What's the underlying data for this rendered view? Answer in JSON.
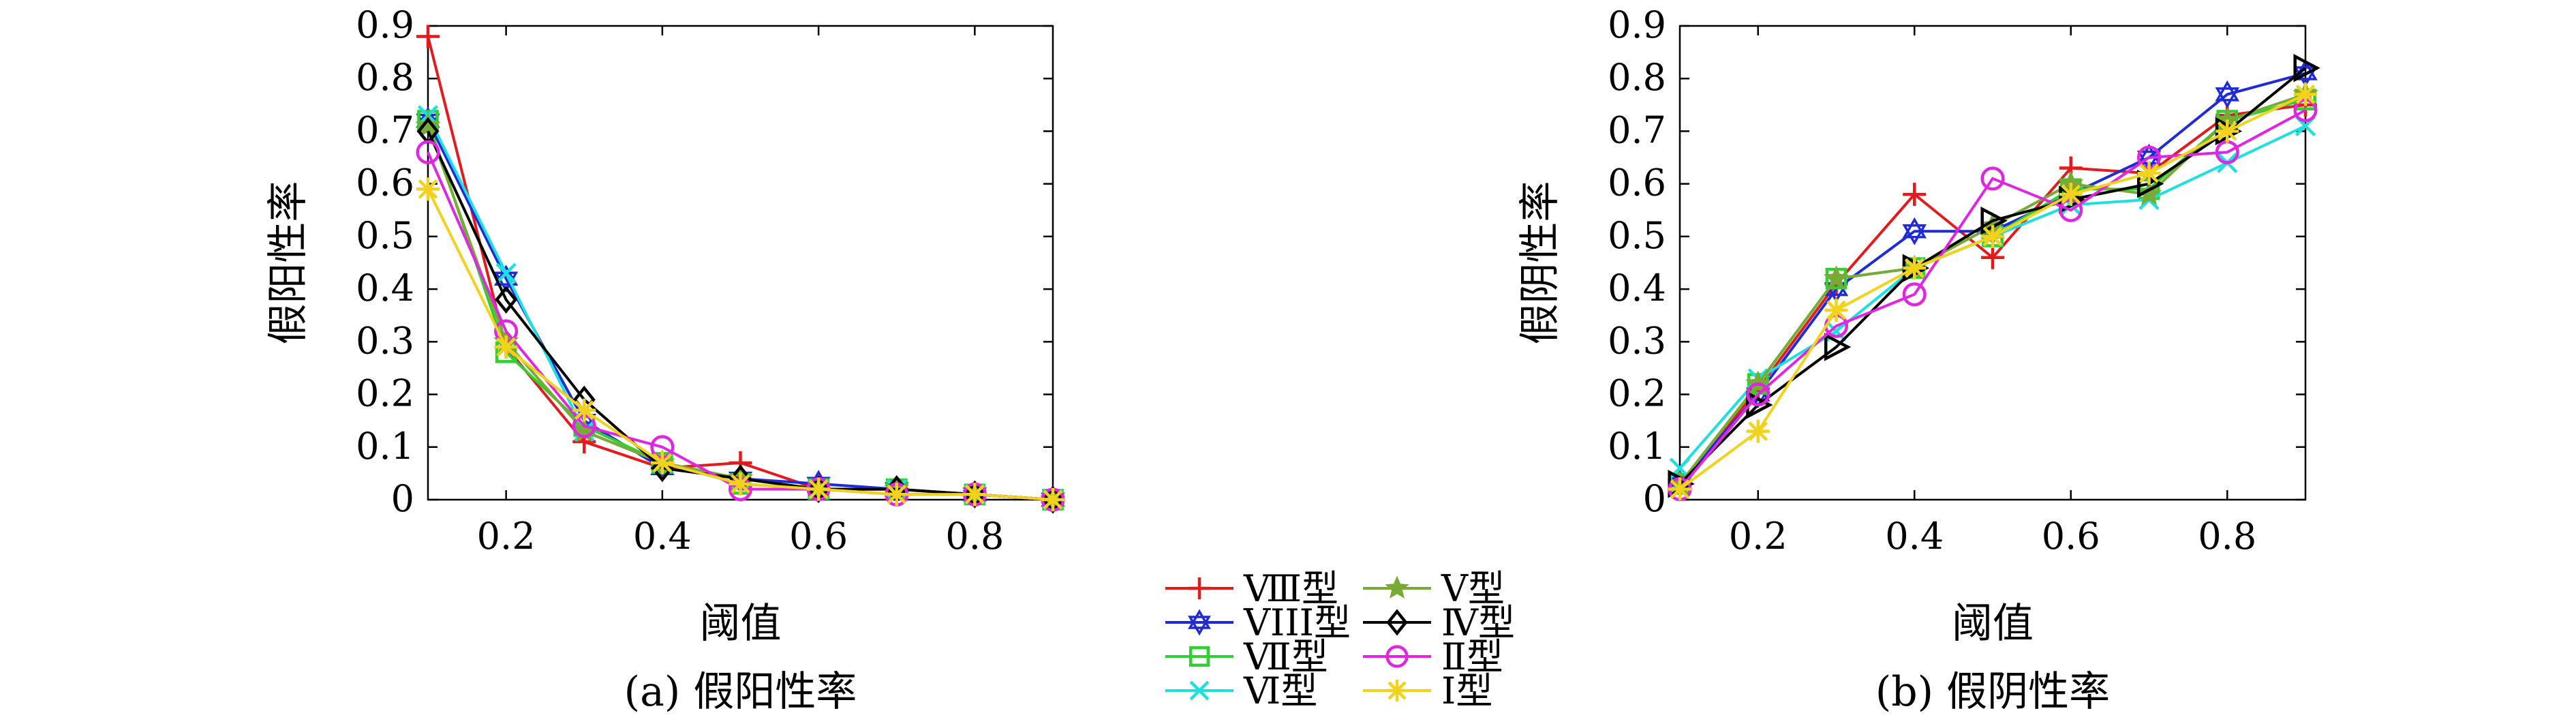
{
  "chart_data": [
    {
      "type": "line",
      "caption": "(a) 假阳性率",
      "xlabel": "阈值",
      "ylabel": "假阳性率",
      "xlim": [
        0.1,
        0.9
      ],
      "ylim": [
        0,
        0.9
      ],
      "xticks": [
        "0.2",
        "0.4",
        "0.6",
        "0.8"
      ],
      "xtick_values": [
        0.2,
        0.4,
        0.6,
        0.8
      ],
      "yticks": [
        "0",
        "0.1",
        "0.2",
        "0.3",
        "0.4",
        "0.5",
        "0.6",
        "0.7",
        "0.8",
        "0.9"
      ],
      "ytick_values": [
        0,
        0.1,
        0.2,
        0.3,
        0.4,
        0.5,
        0.6,
        0.7,
        0.8,
        0.9
      ],
      "x": [
        0.1,
        0.2,
        0.3,
        0.4,
        0.5,
        0.6,
        0.7,
        0.8,
        0.9
      ],
      "series": [
        {
          "name": "Ⅷ型",
          "values": [
            0.88,
            0.29,
            0.11,
            0.06,
            0.07,
            0.02,
            0.02,
            0.01,
            0.0
          ]
        },
        {
          "name": "VIII型",
          "values": [
            0.72,
            0.42,
            0.15,
            0.06,
            0.04,
            0.03,
            0.02,
            0.01,
            0.0
          ]
        },
        {
          "name": "Ⅶ型",
          "values": [
            0.72,
            0.28,
            0.14,
            0.07,
            0.03,
            0.02,
            0.02,
            0.01,
            0.0
          ]
        },
        {
          "name": "Ⅵ型",
          "values": [
            0.73,
            0.43,
            0.13,
            0.07,
            0.03,
            0.02,
            0.02,
            0.01,
            0.0
          ]
        },
        {
          "name": "Ⅴ型",
          "values": [
            0.71,
            0.3,
            0.13,
            0.07,
            0.04,
            0.02,
            0.02,
            0.01,
            0.0
          ]
        },
        {
          "name": "Ⅳ型",
          "values": [
            0.7,
            0.38,
            0.19,
            0.06,
            0.04,
            0.02,
            0.02,
            0.01,
            0.0
          ]
        },
        {
          "name": "Ⅱ型",
          "values": [
            0.66,
            0.32,
            0.14,
            0.1,
            0.02,
            0.02,
            0.01,
            0.01,
            0.0
          ]
        },
        {
          "name": "Ⅰ型",
          "values": [
            0.59,
            0.29,
            0.17,
            0.07,
            0.03,
            0.02,
            0.01,
            0.01,
            0.0
          ]
        }
      ]
    },
    {
      "type": "line",
      "caption": "(b) 假阴性率",
      "xlabel": "阈值",
      "ylabel": "假阴性率",
      "xlim": [
        0.1,
        0.9
      ],
      "ylim": [
        0,
        0.9
      ],
      "xticks": [
        "0.2",
        "0.4",
        "0.6",
        "0.8"
      ],
      "xtick_values": [
        0.2,
        0.4,
        0.6,
        0.8
      ],
      "yticks": [
        "0",
        "0.1",
        "0.2",
        "0.3",
        "0.4",
        "0.5",
        "0.6",
        "0.7",
        "0.8",
        "0.9"
      ],
      "ytick_values": [
        0,
        0.1,
        0.2,
        0.3,
        0.4,
        0.5,
        0.6,
        0.7,
        0.8,
        0.9
      ],
      "x": [
        0.1,
        0.2,
        0.3,
        0.4,
        0.5,
        0.6,
        0.7,
        0.8,
        0.9
      ],
      "series": [
        {
          "name": "Ⅷ型",
          "values": [
            0.03,
            0.21,
            0.41,
            0.58,
            0.46,
            0.63,
            0.62,
            0.73,
            0.75
          ]
        },
        {
          "name": "VIII型",
          "values": [
            0.03,
            0.2,
            0.4,
            0.51,
            0.51,
            0.58,
            0.65,
            0.77,
            0.81
          ]
        },
        {
          "name": "Ⅶ型",
          "values": [
            0.03,
            0.22,
            0.42,
            0.44,
            0.5,
            0.59,
            0.59,
            0.72,
            0.76
          ]
        },
        {
          "name": "Ⅵ型",
          "values": [
            0.06,
            0.23,
            0.32,
            0.44,
            0.5,
            0.56,
            0.57,
            0.64,
            0.71
          ]
        },
        {
          "name": "Ⅴ型",
          "values": [
            0.03,
            0.22,
            0.42,
            0.44,
            0.52,
            0.6,
            0.58,
            0.72,
            0.77
          ]
        },
        {
          "name": "Ⅳ型",
          "values": [
            0.03,
            0.18,
            0.29,
            0.44,
            0.53,
            0.57,
            0.6,
            0.7,
            0.82
          ]
        },
        {
          "name": "Ⅱ型",
          "values": [
            0.02,
            0.2,
            0.33,
            0.39,
            0.61,
            0.55,
            0.65,
            0.66,
            0.74
          ]
        },
        {
          "name": "Ⅰ型",
          "values": [
            0.02,
            0.13,
            0.36,
            0.44,
            0.5,
            0.58,
            0.62,
            0.7,
            0.77
          ]
        }
      ]
    }
  ],
  "legend": {
    "placement": "bottom-center",
    "columns": [
      [
        "Ⅷ型",
        "VIII型",
        "Ⅶ型",
        "Ⅵ型"
      ],
      [
        "Ⅴ型",
        "Ⅳ型",
        "Ⅱ型",
        "Ⅰ型"
      ]
    ]
  },
  "styles": {
    "Ⅷ型": {
      "color": "#e41a1c",
      "marker": "plus"
    },
    "VIII型": {
      "color": "#1f2bd6",
      "marker": "hexagram"
    },
    "Ⅶ型": {
      "color": "#2ed12e",
      "marker": "square"
    },
    "Ⅵ型": {
      "color": "#1fe0e0",
      "marker": "x"
    },
    "Ⅴ型": {
      "color": "#77ab36",
      "marker": "star"
    },
    "Ⅳ型": {
      "color": "#000000",
      "marker": "diamond"
    },
    "Ⅱ型": {
      "color": "#e026e0",
      "marker": "circle"
    },
    "Ⅰ型": {
      "color": "#f2d21c",
      "marker": "asterisk"
    }
  },
  "panel_b_markers": {
    "Ⅳ型": "triangle-right"
  }
}
